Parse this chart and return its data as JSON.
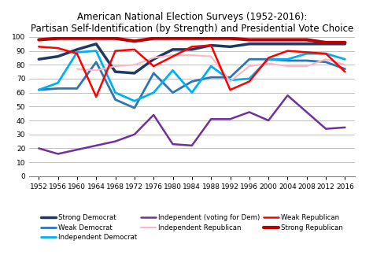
{
  "title": "American National Election Surveys (1952-2016):\nPartisan Self-Identification (by Strength) and Presidential Vote Choice",
  "years": [
    1952,
    1956,
    1960,
    1964,
    1968,
    1972,
    1976,
    1980,
    1984,
    1988,
    1992,
    1996,
    2000,
    2004,
    2008,
    2012,
    2016
  ],
  "series": [
    {
      "label": "Strong Democrat",
      "color": "#1F3864",
      "linewidth": 2.5,
      "values": [
        84,
        86,
        91,
        95,
        75,
        74,
        84,
        91,
        91,
        94,
        93,
        95,
        95,
        95,
        95,
        95,
        95
      ]
    },
    {
      "label": "Weak Democrat",
      "color": "#2E75B6",
      "linewidth": 2.0,
      "values": [
        62,
        63,
        63,
        82,
        55,
        49,
        74,
        60,
        68,
        71,
        71,
        84,
        84,
        83,
        83,
        82,
        77
      ]
    },
    {
      "label": "Independent Democrat",
      "color": "#00B0F0",
      "linewidth": 2.0,
      "values": [
        62,
        67,
        89,
        90,
        60,
        54,
        60,
        76,
        60,
        79,
        69,
        70,
        84,
        84,
        88,
        88,
        84
      ]
    },
    {
      "label": "Independent (voting for Dem)",
      "color": "#7030A0",
      "linewidth": 1.8,
      "values": [
        20,
        16,
        null,
        null,
        25,
        30,
        44,
        23,
        22,
        41,
        41,
        46,
        40,
        58,
        46,
        34,
        35
      ]
    },
    {
      "label": "Independent Republican",
      "color": "#FFB6C1",
      "linewidth": 1.5,
      "values": [
        null,
        null,
        77,
        76,
        79,
        80,
        85,
        87,
        87,
        86,
        68,
        79,
        81,
        79,
        79,
        84,
        80
      ]
    },
    {
      "label": "Weak Republican",
      "color": "#FF0000",
      "linewidth": 1.8,
      "values": [
        93,
        92,
        88,
        57,
        90,
        91,
        79,
        86,
        93,
        94,
        62,
        68,
        85,
        90,
        89,
        88,
        75
      ]
    },
    {
      "label": "Strong Republican",
      "color": "#C00000",
      "linewidth": 3.0,
      "values": [
        98,
        99,
        99,
        99,
        99,
        97,
        99,
        99,
        99,
        99,
        99,
        98,
        98,
        98,
        98,
        96,
        96
      ]
    }
  ],
  "ylim": [
    0,
    100
  ],
  "yticks": [
    0,
    10,
    20,
    30,
    40,
    50,
    60,
    70,
    80,
    90,
    100
  ],
  "background_color": "#FFFFFF",
  "grid_color": "#C0C0C0",
  "legend_order": [
    0,
    1,
    2,
    3,
    4,
    5,
    6
  ],
  "legend_ncol": 3,
  "legend_labels_row1": [
    "Strong Democrat",
    "Weak Democrat",
    "Independent Democrat"
  ],
  "legend_labels_row2": [
    "Independent (voting for Dem)",
    "Independent Republican",
    "Weak Republican"
  ],
  "legend_labels_row3": [
    "Strong Republican"
  ]
}
